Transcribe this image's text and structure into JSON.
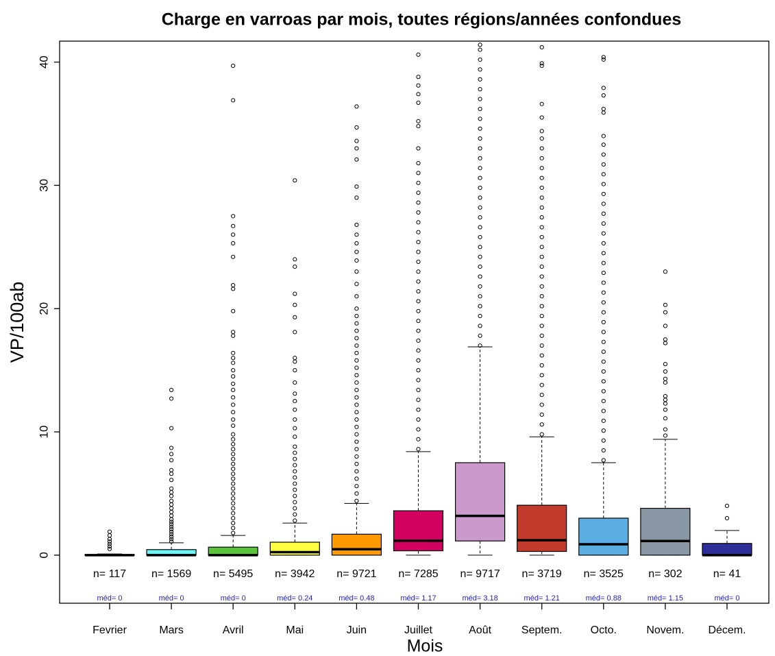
{
  "chart_data": {
    "type": "box",
    "title": "Charge en varroas par mois, toutes régions/années confondues",
    "x_label": "Mois",
    "y_label": "VP/100ab",
    "categories": [
      "Fevrier",
      "Mars",
      "Avril",
      "Mai",
      "Juin",
      "Juillet",
      "Août",
      "Septem.",
      "Octo.",
      "Novem.",
      "Décem."
    ],
    "colors": [
      "#ffffff",
      "#6ff3f3",
      "#5cc43c",
      "#ffff40",
      "#ff9900",
      "#d2005f",
      "#cc99cc",
      "#c23a2c",
      "#5aaee2",
      "#8996a3",
      "#2e2e99"
    ],
    "whisker_low": [
      0,
      0,
      0,
      0,
      0,
      0,
      0,
      0,
      0,
      0,
      0
    ],
    "q1": [
      0,
      0,
      0,
      0,
      0,
      0.35,
      1.15,
      0.3,
      0,
      0,
      0
    ],
    "median": [
      0,
      0,
      0,
      0.24,
      0.48,
      1.17,
      3.18,
      1.21,
      0.88,
      1.15,
      0
    ],
    "q3": [
      0.05,
      0.45,
      0.65,
      1.05,
      1.7,
      3.6,
      7.5,
      4.05,
      3.0,
      3.8,
      0.95
    ],
    "whisker_high": [
      0.1,
      1.0,
      1.6,
      2.6,
      4.2,
      8.4,
      16.9,
      9.6,
      7.5,
      9.4,
      2.0
    ],
    "n_labels": [
      "n= 117",
      "n= 1569",
      "n= 5495",
      "n= 3942",
      "n= 9721",
      "n= 7285",
      "n= 9717",
      "n= 3719",
      "n= 3525",
      "n= 302",
      "n= 41"
    ],
    "median_labels": [
      "méd= 0",
      "méd= 0",
      "méd= 0",
      "méd= 0.24",
      "méd= 0.48",
      "méd= 1.17",
      "méd= 3.18",
      "méd= 1.21",
      "méd= 0.88",
      "méd= 1.15",
      "méd= 0"
    ],
    "outliers": [
      [
        0.5,
        0.7,
        0.9,
        1.1,
        1.3,
        1.6,
        1.9
      ],
      [
        1.1,
        1.3,
        1.5,
        1.7,
        1.9,
        2.1,
        2.3,
        2.5,
        2.7,
        2.9,
        3.2,
        3.5,
        3.8,
        4.1,
        4.4,
        4.8,
        5.1,
        5.4,
        6.1,
        6.6,
        6.9,
        7.7,
        8.2,
        8.7,
        10.3,
        12.7,
        13.4
      ],
      [
        1.8,
        2.2,
        2.6,
        3.0,
        3.4,
        3.8,
        4.2,
        4.6,
        5.0,
        5.4,
        5.8,
        6.2,
        6.6,
        7.0,
        7.4,
        7.8,
        8.2,
        8.6,
        9.0,
        9.4,
        9.8,
        10.5,
        11,
        11.6,
        12.2,
        12.8,
        13.4,
        13.9,
        14.5,
        15,
        15.6,
        16,
        16.4,
        17.8,
        18.1,
        19.8,
        21.6,
        21.9,
        24.2,
        25.3,
        26,
        26.7,
        27.5,
        36.9,
        39.7
      ],
      [
        2.8,
        3.3,
        3.8,
        4.3,
        4.8,
        5.3,
        5.8,
        6.3,
        6.8,
        7.3,
        7.8,
        8.3,
        8.8,
        9.6,
        10.3,
        11,
        11.8,
        12.5,
        13.1,
        14,
        15,
        15.7,
        16,
        18.1,
        19.3,
        20.3,
        21.2,
        23.4,
        24,
        30.4
      ],
      [
        4.4,
        5,
        5.6,
        6.2,
        6.8,
        7.4,
        8,
        8.6,
        9.2,
        9.8,
        10.4,
        11,
        11.6,
        12.2,
        12.8,
        13.4,
        14,
        14.6,
        15.2,
        15.8,
        16.4,
        17,
        17.6,
        18.2,
        18.8,
        19.4,
        20,
        21,
        22,
        23,
        23.9,
        24.6,
        25.3,
        26,
        26.8,
        29,
        29.9,
        32.1,
        33,
        33.6,
        34.7,
        36.4
      ],
      [
        8.6,
        9.4,
        10.2,
        11,
        11.8,
        12.6,
        13.4,
        14.2,
        15,
        15.8,
        16.6,
        17.4,
        18.2,
        19,
        19.8,
        20.6,
        21.4,
        22.2,
        23,
        23.8,
        24.6,
        25.4,
        26.2,
        27,
        27.8,
        28.6,
        29.4,
        30.2,
        31,
        31.8,
        33,
        34.8,
        35.2,
        36.7,
        37.4,
        38.1,
        38.8,
        40.6
      ],
      [
        17,
        17.8,
        18.6,
        19.4,
        20.2,
        21,
        21.8,
        22.6,
        23.4,
        24.2,
        25,
        25.8,
        26.6,
        27.4,
        28.2,
        29,
        29.8,
        30.6,
        31.4,
        32.2,
        33,
        33.8,
        34.6,
        35.4,
        36.2,
        37,
        37.8,
        38.6,
        39.4,
        40.2,
        41,
        41.4
      ],
      [
        9.8,
        10.6,
        11.4,
        12.2,
        13,
        13.8,
        14.6,
        15.4,
        16.2,
        17,
        17.8,
        18.6,
        19.4,
        20.2,
        21,
        21.8,
        22.6,
        23.4,
        24.2,
        25,
        25.8,
        26.6,
        27.4,
        28.2,
        29,
        29.8,
        30.6,
        31.4,
        32.2,
        33,
        33.8,
        34.4,
        35.5,
        36.6,
        39.7,
        39.9,
        41.2
      ],
      [
        7.7,
        8.5,
        9.3,
        10.1,
        10.9,
        11.7,
        12.5,
        13.3,
        14.1,
        14.9,
        15.7,
        16.5,
        17.3,
        18.1,
        18.9,
        19.7,
        20.5,
        21.3,
        22.1,
        22.9,
        23.7,
        24.5,
        25.3,
        26.1,
        26.9,
        27.7,
        28.5,
        29.3,
        30.1,
        30.9,
        31.7,
        32.5,
        33.3,
        34,
        35.9,
        36.2,
        37.3,
        37.9,
        40.2,
        40.4
      ],
      [
        9.7,
        10.2,
        11.1,
        11.8,
        12.3,
        12.6,
        12.9,
        14,
        14.3,
        14.9,
        15.5,
        17.2,
        17.5,
        18.6,
        19.7,
        20.3,
        23
      ],
      [
        3.0,
        4.0
      ]
    ],
    "ylim": [
      -3.9,
      41.7
    ],
    "yticks": [
      0,
      10,
      20,
      30,
      40
    ]
  }
}
